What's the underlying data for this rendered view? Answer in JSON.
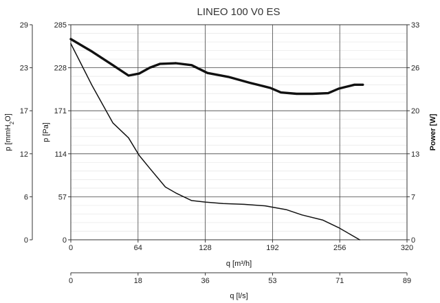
{
  "chart_data": {
    "type": "line",
    "title": "LINEO 100 V0 ES",
    "grid": true,
    "x_axes": [
      {
        "label": "q [m³/h]",
        "ticks": [
          "0",
          "64",
          "128",
          "192",
          "256",
          "320"
        ],
        "range": [
          0,
          320
        ]
      },
      {
        "label": "q [l/s]",
        "ticks": [
          "0",
          "18",
          "36",
          "53",
          "71",
          "89"
        ],
        "range": [
          0,
          89
        ]
      }
    ],
    "y_axes": [
      {
        "side": "left-outer",
        "label": "p [mmH2O]",
        "label_main": "p [mmH",
        "label_sub": "2",
        "label_end": "O]",
        "ticks": [
          "0",
          "6",
          "12",
          "17",
          "23",
          "29"
        ],
        "range": [
          0,
          29
        ]
      },
      {
        "side": "left-inner",
        "label": "p [Pa]",
        "ticks": [
          "0",
          "57",
          "114",
          "171",
          "228",
          "285"
        ],
        "range": [
          0,
          285
        ]
      },
      {
        "side": "right",
        "label": "Power [W]",
        "ticks": [
          "0",
          "7",
          "13",
          "20",
          "26",
          "33"
        ],
        "range": [
          0,
          33
        ]
      }
    ],
    "series": [
      {
        "axis": "pressure_pa",
        "x": [
          0,
          20,
          40,
          55,
          65,
          75,
          90,
          100,
          115,
          128,
          145,
          165,
          185,
          205,
          220,
          240,
          255,
          275
        ],
        "y": [
          260,
          205,
          155,
          135,
          112,
          95,
          70,
          62,
          52,
          50,
          48,
          47,
          45,
          40,
          33,
          26,
          16,
          0
        ]
      },
      {
        "axis": "power_w",
        "x": [
          0,
          20,
          40,
          55,
          65,
          75,
          85,
          100,
          115,
          130,
          150,
          170,
          190,
          200,
          215,
          230,
          245,
          255,
          270,
          278
        ],
        "y": [
          30.8,
          28.9,
          26.8,
          25.2,
          25.5,
          26.4,
          27.0,
          27.1,
          26.8,
          25.6,
          25.0,
          24.1,
          23.3,
          22.6,
          22.4,
          22.4,
          22.5,
          23.2,
          23.8,
          23.8
        ]
      }
    ]
  }
}
